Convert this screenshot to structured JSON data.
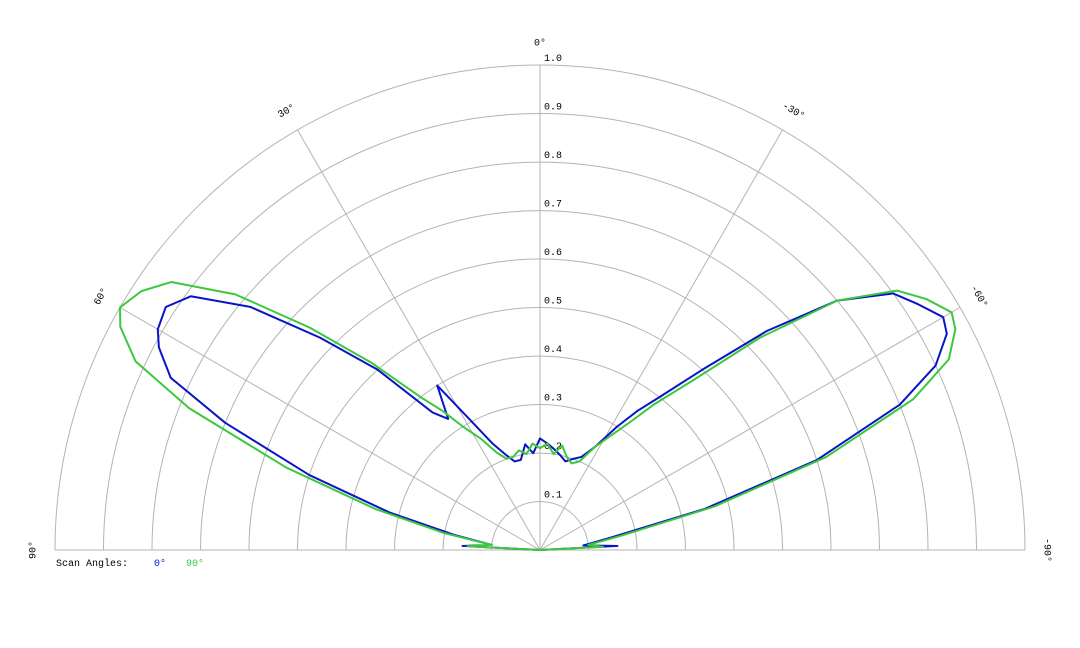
{
  "chart_data": {
    "type": "polar",
    "legend_title": "Scan Angles:",
    "xlim": [
      90,
      -90
    ],
    "ylim": [
      0,
      1
    ],
    "xticks": [
      {
        "value": 90,
        "label": "90°"
      },
      {
        "value": 60,
        "label": "60°"
      },
      {
        "value": 30,
        "label": "30°"
      },
      {
        "value": 0,
        "label": "0°"
      },
      {
        "value": -30,
        "label": "-30°"
      },
      {
        "value": -60,
        "label": "-60°"
      },
      {
        "value": -90,
        "label": "-90°"
      }
    ],
    "yticks": [
      0.1,
      0.2,
      0.3,
      0.4,
      0.5,
      0.6,
      0.7,
      0.8,
      0.9,
      {
        "value": 1,
        "label": "1.0"
      }
    ],
    "grid": true,
    "x": [
      -90,
      -87,
      -84,
      -80,
      -76,
      -72,
      -68,
      -65,
      -62,
      -60,
      -57,
      -54,
      -50,
      -46,
      -42,
      -38,
      -35,
      -32,
      -28,
      -24,
      -20,
      -16,
      -12,
      -8,
      -4,
      0,
      4,
      8,
      12,
      16,
      20,
      24,
      28,
      32,
      35,
      38,
      42,
      46,
      50,
      54,
      57,
      60,
      62,
      65,
      68,
      72,
      76,
      80,
      84,
      87,
      90
    ],
    "series": [
      {
        "name": "0°",
        "color": "#0a14c8",
        "values": [
          0,
          0.16,
          0.09,
          0.15,
          0.35,
          0.6,
          0.8,
          0.9,
          0.95,
          0.96,
          0.93,
          0.9,
          0.8,
          0.65,
          0.5,
          0.4,
          0.35,
          0.3,
          0.24,
          0.21,
          0.2,
          0.19,
          0.2,
          0.21,
          0.22,
          0.23,
          0.2,
          0.22,
          0.19,
          0.19,
          0.21,
          0.24,
          0.3,
          0.4,
          0.33,
          0.36,
          0.5,
          0.63,
          0.78,
          0.89,
          0.92,
          0.91,
          0.89,
          0.84,
          0.7,
          0.5,
          0.32,
          0.18,
          0.1,
          0.16,
          0
        ]
      },
      {
        "name": "90°",
        "color": "#3cc83c",
        "values": [
          0,
          0.13,
          0.1,
          0.17,
          0.37,
          0.62,
          0.83,
          0.93,
          0.97,
          0.98,
          0.95,
          0.91,
          0.8,
          0.63,
          0.47,
          0.38,
          0.32,
          0.28,
          0.24,
          0.2,
          0.19,
          0.2,
          0.22,
          0.2,
          0.22,
          0.21,
          0.22,
          0.2,
          0.21,
          0.2,
          0.2,
          0.22,
          0.26,
          0.3,
          0.35,
          0.4,
          0.52,
          0.66,
          0.82,
          0.94,
          0.98,
          1.0,
          0.98,
          0.92,
          0.78,
          0.55,
          0.35,
          0.2,
          0.1,
          0.15,
          0
        ]
      }
    ]
  }
}
